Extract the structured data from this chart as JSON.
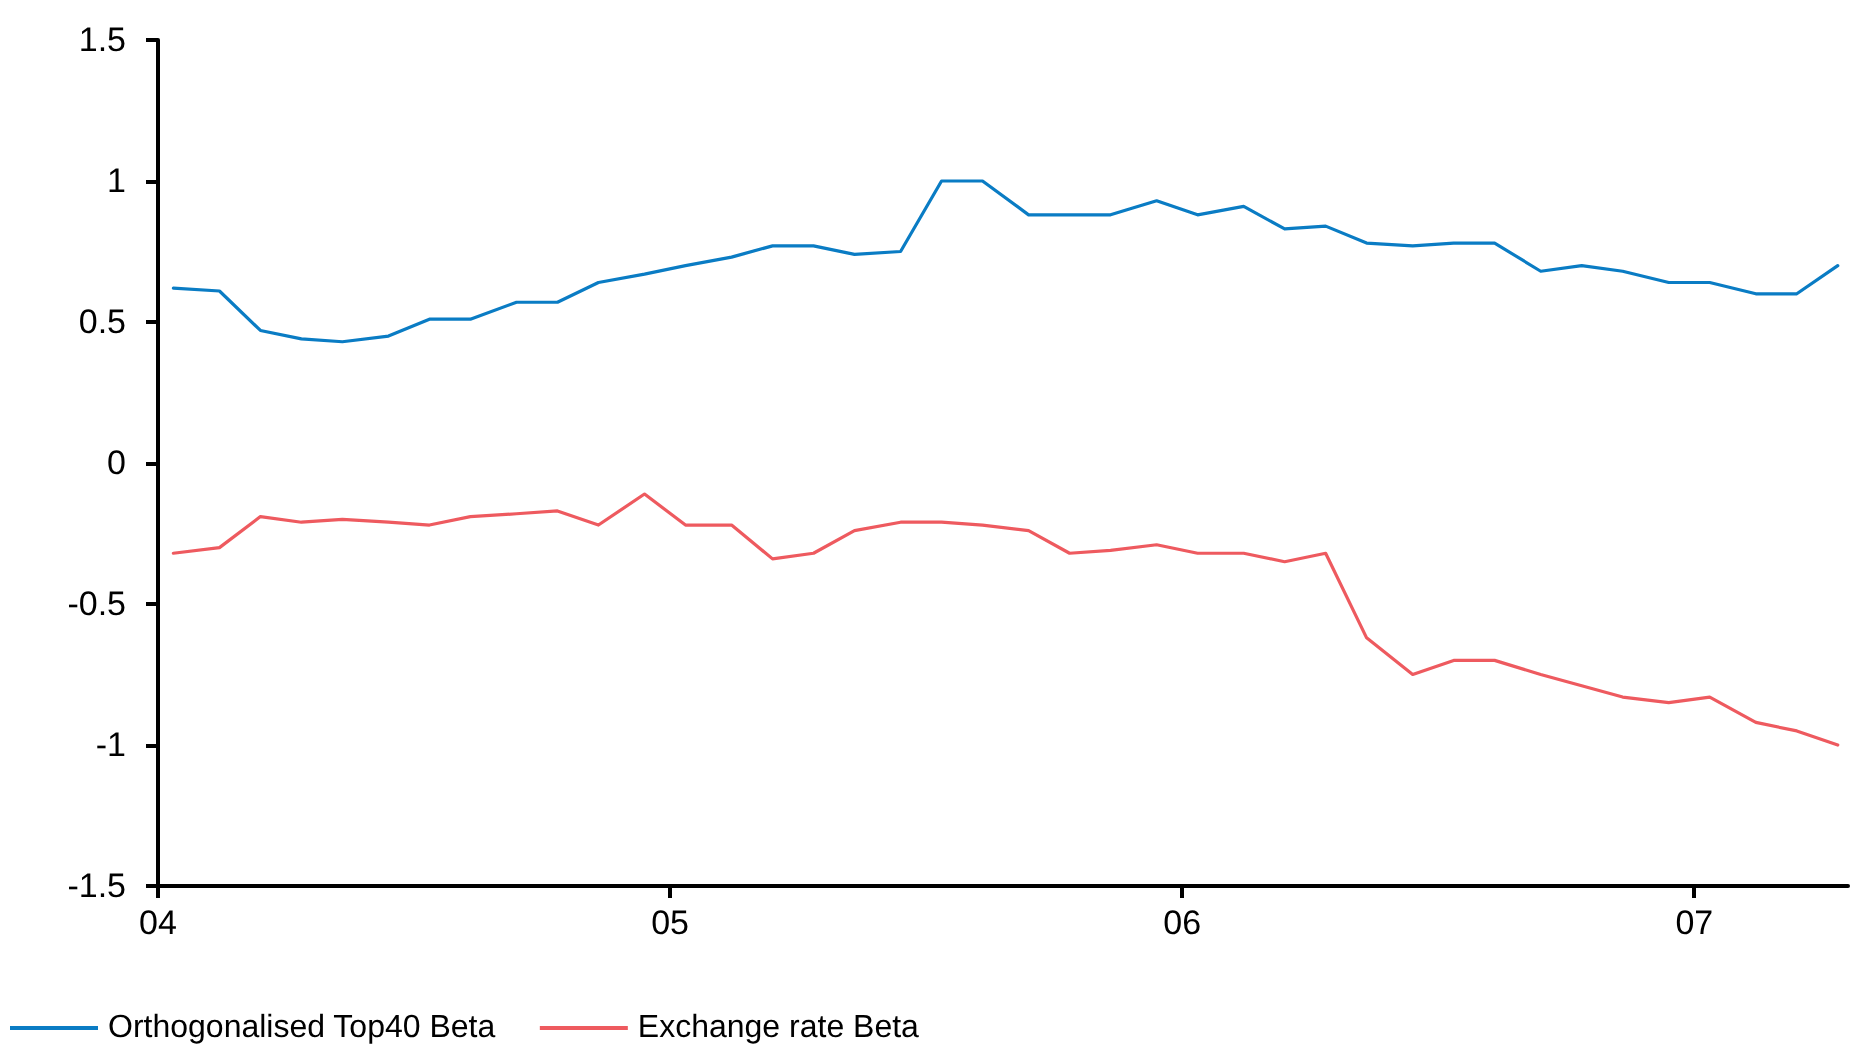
{
  "chart_data": {
    "type": "line",
    "x": [
      2004.03,
      2004.12,
      2004.2,
      2004.28,
      2004.36,
      2004.45,
      2004.53,
      2004.61,
      2004.7,
      2004.78,
      2004.86,
      2004.95,
      2005.03,
      2005.12,
      2005.2,
      2005.28,
      2005.36,
      2005.45,
      2005.53,
      2005.61,
      2005.7,
      2005.78,
      2005.86,
      2005.95,
      2006.03,
      2006.12,
      2006.2,
      2006.28,
      2006.36,
      2006.45,
      2006.53,
      2006.61,
      2006.7,
      2006.78,
      2006.86,
      2006.95,
      2007.03,
      2007.12,
      2007.2,
      2007.28
    ],
    "series": [
      {
        "name": "Orthogonalised Top40 Beta",
        "color": "#0a7cc4",
        "values": [
          0.62,
          0.61,
          0.47,
          0.44,
          0.43,
          0.45,
          0.51,
          0.51,
          0.57,
          0.57,
          0.64,
          0.67,
          0.7,
          0.73,
          0.77,
          0.77,
          0.74,
          0.75,
          1.0,
          1.0,
          0.88,
          0.88,
          0.88,
          0.93,
          0.88,
          0.91,
          0.83,
          0.84,
          0.78,
          0.77,
          0.78,
          0.78,
          0.68,
          0.7,
          0.68,
          0.64,
          0.64,
          0.6,
          0.6,
          0.7
        ]
      },
      {
        "name": "Exchange rate Beta",
        "color": "#ee5a5f",
        "values": [
          -0.32,
          -0.3,
          -0.19,
          -0.21,
          -0.2,
          -0.21,
          -0.22,
          -0.19,
          -0.18,
          -0.17,
          -0.22,
          -0.11,
          -0.22,
          -0.22,
          -0.34,
          -0.32,
          -0.24,
          -0.21,
          -0.21,
          -0.22,
          -0.24,
          -0.32,
          -0.31,
          -0.29,
          -0.32,
          -0.32,
          -0.35,
          -0.32,
          -0.62,
          -0.75,
          -0.7,
          -0.7,
          -0.75,
          -0.79,
          -0.83,
          -0.85,
          -0.83,
          -0.92,
          -0.95,
          -1.0
        ]
      }
    ],
    "xlim": [
      2004,
      2007.3
    ],
    "xticks": [
      {
        "value": 2004,
        "label": "04"
      },
      {
        "value": 2005,
        "label": "05"
      },
      {
        "value": 2006,
        "label": "06"
      },
      {
        "value": 2007,
        "label": "07"
      }
    ],
    "ylim": [
      -1.5,
      1.5
    ],
    "yticks": [
      -1.5,
      -1,
      -0.5,
      0,
      0.5,
      1,
      1.5
    ],
    "grid": false,
    "legend": "bottom left",
    "marker": "none",
    "line_style": "solid"
  }
}
